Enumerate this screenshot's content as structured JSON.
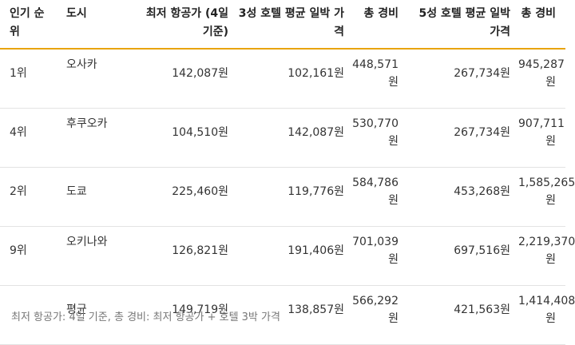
{
  "table": {
    "headers": {
      "rank": "인기 순위",
      "city": "도시",
      "airfare": "최저 항공가 (4일 기준)",
      "hotel3": "3성 호텔 평균 일박 가격",
      "total3": "총 경비",
      "hotel5": "5성 호텔 평균 일박 가격",
      "total5": "총 경비"
    },
    "rows": [
      {
        "rank": "1위",
        "city": "오사카",
        "airfare": "142,087원",
        "hotel3": "102,161원",
        "total3": "448,571원",
        "hotel5": "267,734원",
        "total5": "945,287원"
      },
      {
        "rank": "4위",
        "city": "후쿠오카",
        "airfare": "104,510원",
        "hotel3": "142,087원",
        "total3": "530,770원",
        "hotel5": "267,734원",
        "total5": "907,711원"
      },
      {
        "rank": "2위",
        "city": "도쿄",
        "airfare": "225,460원",
        "hotel3": "119,776원",
        "total3": "584,786원",
        "hotel5": "453,268원",
        "total5": "1,585,265원"
      },
      {
        "rank": "9위",
        "city": "오키나와",
        "airfare": "126,821원",
        "hotel3": "191,406원",
        "total3": "701,039원",
        "hotel5": "697,516원",
        "total5": "2,219,370원"
      },
      {
        "rank": "",
        "city": "평균",
        "airfare": "149,719원",
        "hotel3": "138,857원",
        "total3": "566,292원",
        "hotel5": "421,563원",
        "total5": "1,414,408원"
      }
    ]
  },
  "footnote": "최저 항공가: 4일 기준, 총 경비: 최저 항공가 + 호텔 3박 가격"
}
